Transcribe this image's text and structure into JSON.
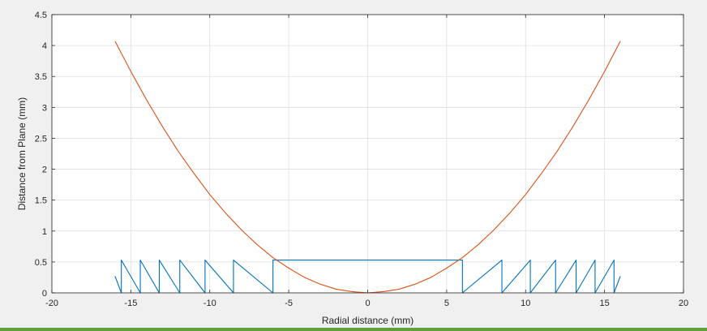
{
  "chart_data": {
    "type": "line",
    "title": "",
    "xlabel": "Radial distance (mm)",
    "ylabel": "Distance from Plane (mm)",
    "xlim": [
      -20,
      20
    ],
    "ylim": [
      0,
      4.5
    ],
    "xticks": [
      -20,
      -15,
      -10,
      -5,
      0,
      5,
      10,
      15,
      20
    ],
    "yticks": [
      0,
      0.5,
      1,
      1.5,
      2,
      2.5,
      3,
      3.5,
      4,
      4.5
    ],
    "xtick_labels": [
      "-20",
      "-15",
      "-10",
      "-5",
      "0",
      "5",
      "10",
      "15",
      "20"
    ],
    "ytick_labels": [
      "0",
      "0.5",
      "1",
      "1.5",
      "2",
      "2.5",
      "3",
      "3.5",
      "4",
      "4.5"
    ],
    "grid": true,
    "series": [
      {
        "color": "#0072bd",
        "x": [
          -16,
          -15.6,
          -15.6,
          -14.4,
          -14.4,
          -13.2,
          -13.2,
          -11.9,
          -11.9,
          -10.3,
          -10.3,
          -8.5,
          -8.5,
          -6,
          -6,
          6,
          6,
          8.5,
          8.5,
          10.3,
          10.3,
          11.9,
          11.9,
          13.2,
          13.2,
          14.4,
          14.4,
          15.6,
          15.6,
          16
        ],
        "y": [
          0.27,
          0,
          0.53,
          0,
          0.53,
          0,
          0.53,
          0,
          0.53,
          0,
          0.53,
          0,
          0.53,
          0,
          0.53,
          0.53,
          0,
          0.53,
          0,
          0.53,
          0,
          0.53,
          0,
          0.53,
          0,
          0.53,
          0,
          0.53,
          0,
          0.27
        ]
      },
      {
        "color": "#d95319",
        "x": [
          -16,
          -15,
          -14,
          -13,
          -12,
          -11,
          -10,
          -9,
          -8,
          -7,
          -6,
          -5,
          -4,
          -3,
          -2,
          -1,
          0,
          1,
          2,
          3,
          4,
          5,
          6,
          7,
          8,
          9,
          10,
          11,
          12,
          13,
          14,
          15,
          16
        ],
        "y": [
          4.07,
          3.58,
          3.12,
          2.69,
          2.29,
          1.93,
          1.59,
          1.29,
          1.02,
          0.78,
          0.57,
          0.4,
          0.25,
          0.14,
          0.06,
          0.02,
          0,
          0.02,
          0.06,
          0.14,
          0.25,
          0.4,
          0.57,
          0.78,
          1.02,
          1.29,
          1.59,
          1.93,
          2.29,
          2.69,
          3.12,
          3.58,
          4.07
        ]
      }
    ]
  }
}
